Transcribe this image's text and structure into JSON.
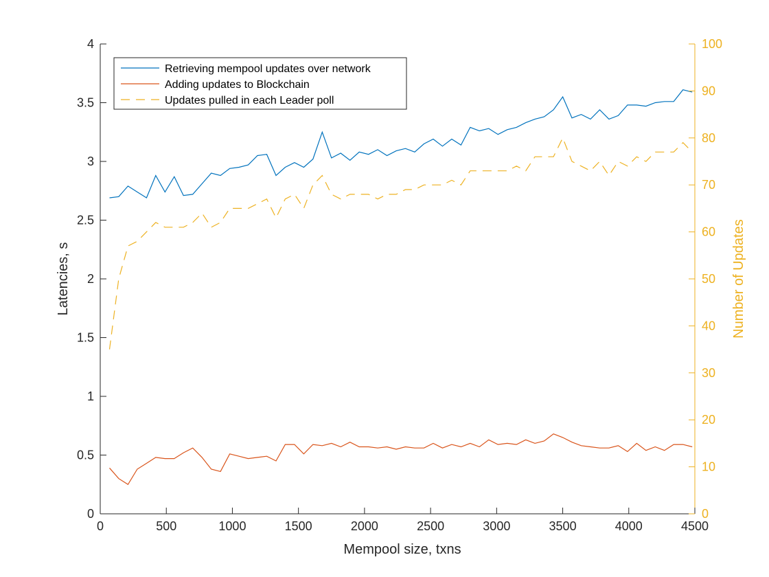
{
  "chart_data": {
    "type": "line",
    "title": "",
    "xlabel": "Mempool size, txns",
    "ylabel_left": "Latencies, s",
    "ylabel_right": "Number of Updates",
    "xlim": [
      0,
      4500
    ],
    "ylim_left": [
      0,
      4
    ],
    "ylim_right": [
      0,
      100
    ],
    "x_ticks": [
      0,
      500,
      1000,
      1500,
      2000,
      2500,
      3000,
      3500,
      4000,
      4500
    ],
    "y_left_ticks": [
      0,
      0.5,
      1,
      1.5,
      2,
      2.5,
      3,
      3.5,
      4
    ],
    "y_right_ticks": [
      0,
      10,
      20,
      30,
      40,
      50,
      60,
      70,
      80,
      90,
      100
    ],
    "grid": false,
    "legend_position": "top-left",
    "colors": {
      "network": "#0072BD",
      "blockchain": "#D95319",
      "updates": "#EDB120",
      "axis": "#262626"
    },
    "series": [
      {
        "name": "Retrieving mempool updates over network",
        "axis": "left",
        "style": "solid",
        "x": [
          70,
          140,
          210,
          280,
          350,
          420,
          490,
          560,
          630,
          700,
          770,
          840,
          910,
          980,
          1050,
          1120,
          1190,
          1260,
          1330,
          1400,
          1470,
          1540,
          1610,
          1680,
          1750,
          1820,
          1890,
          1960,
          2030,
          2100,
          2170,
          2240,
          2310,
          2380,
          2450,
          2520,
          2590,
          2660,
          2730,
          2800,
          2870,
          2940,
          3010,
          3080,
          3150,
          3220,
          3290,
          3360,
          3430,
          3500,
          3570,
          3640,
          3710,
          3780,
          3850,
          3920,
          3990,
          4060,
          4130,
          4200,
          4270,
          4340,
          4410,
          4480
        ],
        "values": [
          2.69,
          2.7,
          2.79,
          2.74,
          2.69,
          2.88,
          2.74,
          2.87,
          2.71,
          2.72,
          2.81,
          2.9,
          2.88,
          2.94,
          2.95,
          2.97,
          3.05,
          3.06,
          2.88,
          2.95,
          2.99,
          2.95,
          3.02,
          3.25,
          3.03,
          3.07,
          3.01,
          3.08,
          3.06,
          3.1,
          3.05,
          3.09,
          3.11,
          3.08,
          3.15,
          3.19,
          3.13,
          3.19,
          3.14,
          3.29,
          3.26,
          3.28,
          3.23,
          3.27,
          3.29,
          3.33,
          3.36,
          3.38,
          3.44,
          3.55,
          3.37,
          3.4,
          3.36,
          3.44,
          3.36,
          3.39,
          3.48,
          3.48,
          3.47,
          3.5,
          3.51,
          3.51,
          3.61,
          3.59
        ]
      },
      {
        "name": "Adding updates to Blockchain",
        "axis": "left",
        "style": "solid",
        "x": [
          70,
          140,
          210,
          280,
          350,
          420,
          490,
          560,
          630,
          700,
          770,
          840,
          910,
          980,
          1050,
          1120,
          1190,
          1260,
          1330,
          1400,
          1470,
          1540,
          1610,
          1680,
          1750,
          1820,
          1890,
          1960,
          2030,
          2100,
          2170,
          2240,
          2310,
          2380,
          2450,
          2520,
          2590,
          2660,
          2730,
          2800,
          2870,
          2940,
          3010,
          3080,
          3150,
          3220,
          3290,
          3360,
          3430,
          3500,
          3570,
          3640,
          3710,
          3780,
          3850,
          3920,
          3990,
          4060,
          4130,
          4200,
          4270,
          4340,
          4410,
          4480
        ],
        "values": [
          0.39,
          0.3,
          0.25,
          0.38,
          0.43,
          0.48,
          0.47,
          0.47,
          0.52,
          0.56,
          0.48,
          0.38,
          0.36,
          0.51,
          0.49,
          0.47,
          0.48,
          0.49,
          0.45,
          0.59,
          0.59,
          0.51,
          0.59,
          0.58,
          0.6,
          0.57,
          0.61,
          0.57,
          0.57,
          0.56,
          0.57,
          0.55,
          0.57,
          0.56,
          0.56,
          0.6,
          0.56,
          0.59,
          0.57,
          0.6,
          0.57,
          0.63,
          0.59,
          0.6,
          0.59,
          0.63,
          0.6,
          0.62,
          0.68,
          0.65,
          0.61,
          0.58,
          0.57,
          0.56,
          0.56,
          0.58,
          0.53,
          0.6,
          0.54,
          0.57,
          0.54,
          0.59,
          0.59,
          0.57
        ]
      },
      {
        "name": "Updates pulled in each Leader poll",
        "axis": "right",
        "style": "dashed",
        "x": [
          70,
          140,
          210,
          280,
          350,
          420,
          490,
          560,
          630,
          700,
          770,
          840,
          910,
          980,
          1050,
          1120,
          1190,
          1260,
          1330,
          1400,
          1470,
          1540,
          1610,
          1680,
          1750,
          1820,
          1890,
          1960,
          2030,
          2100,
          2170,
          2240,
          2310,
          2380,
          2450,
          2520,
          2590,
          2660,
          2730,
          2800,
          2870,
          2940,
          3010,
          3080,
          3150,
          3220,
          3290,
          3360,
          3430,
          3500,
          3570,
          3640,
          3710,
          3780,
          3850,
          3920,
          3990,
          4060,
          4130,
          4200,
          4270,
          4340,
          4410,
          4480
        ],
        "values": [
          35,
          50,
          57,
          58,
          60,
          62,
          61,
          61,
          61,
          62,
          64,
          61,
          62,
          65,
          65,
          65,
          66,
          67,
          63,
          67,
          68,
          65,
          70,
          72,
          68,
          67,
          68,
          68,
          68,
          67,
          68,
          68,
          69,
          69,
          70,
          70,
          70,
          71,
          70,
          73,
          73,
          73,
          73,
          73,
          74,
          73,
          76,
          76,
          76,
          80,
          75,
          74,
          73,
          75,
          72,
          75,
          74,
          76,
          75,
          77,
          77,
          77,
          79,
          77
        ]
      }
    ]
  }
}
